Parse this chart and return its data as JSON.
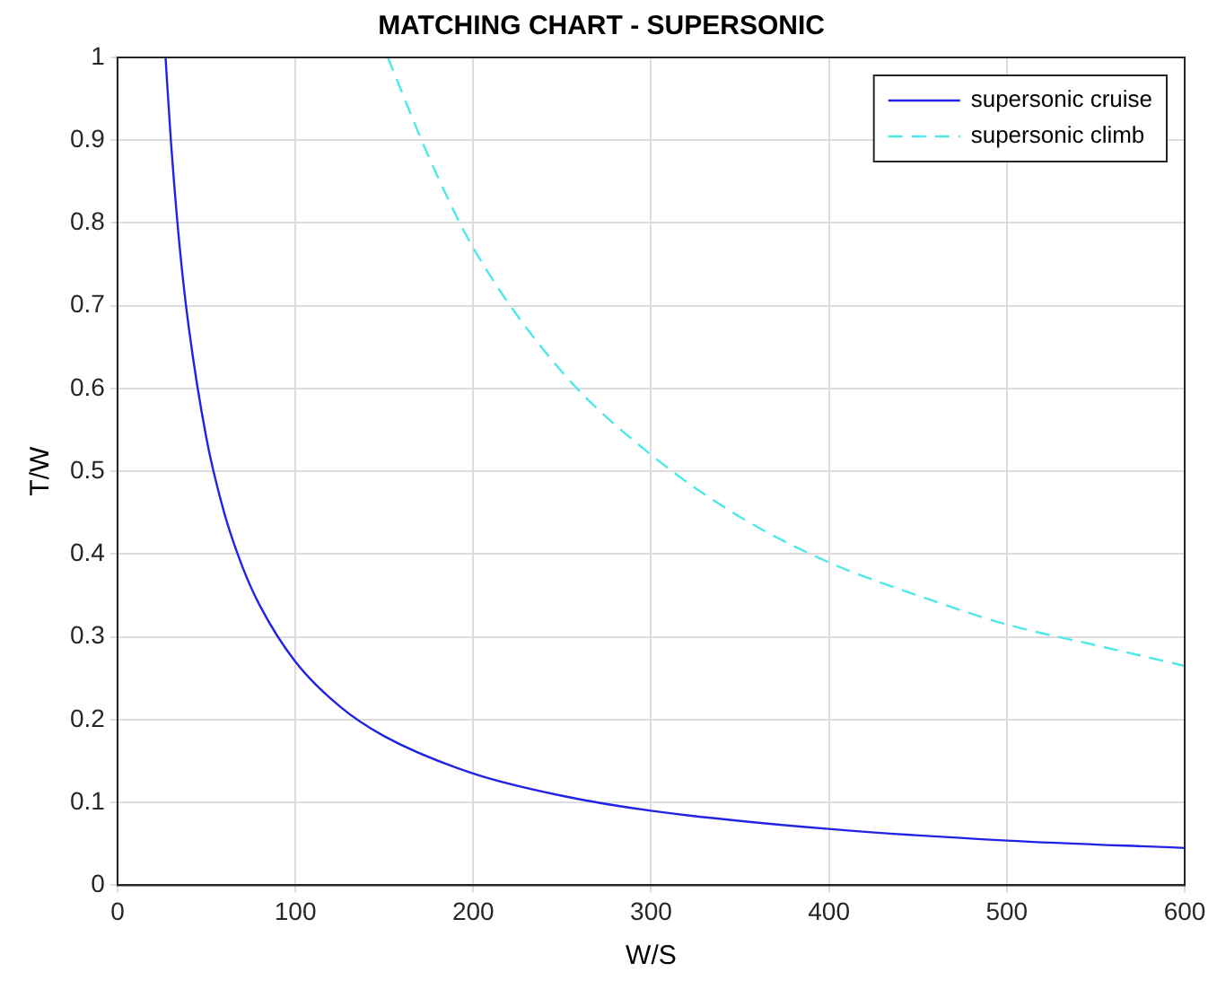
{
  "chart_data": {
    "type": "line",
    "title": "MATCHING CHART - SUPERSONIC",
    "xlabel": "W/S",
    "ylabel": "T/W",
    "series": [
      {
        "name": "supersonic cruise",
        "color": "#2222e6",
        "line_style": "solid",
        "x": [
          27,
          30,
          35,
          40,
          50,
          60,
          70,
          80,
          100,
          125,
          150,
          200,
          250,
          300,
          400,
          500,
          600
        ],
        "values": [
          1.0,
          0.9,
          0.77,
          0.675,
          0.54,
          0.45,
          0.386,
          0.338,
          0.27,
          0.216,
          0.18,
          0.135,
          0.108,
          0.09,
          0.068,
          0.054,
          0.045
        ]
      },
      {
        "name": "supersonic climb",
        "color": "#4de8e8",
        "line_style": "dashed",
        "x": [
          152,
          175,
          200,
          250,
          300,
          350,
          400,
          450,
          500,
          550,
          600
        ],
        "values": [
          1.0,
          0.88,
          0.77,
          0.62,
          0.52,
          0.445,
          0.39,
          0.35,
          0.315,
          0.29,
          0.265
        ]
      }
    ],
    "xlim": [
      0,
      600
    ],
    "ylim": [
      0,
      1
    ],
    "xticks": [
      0,
      100,
      200,
      300,
      400,
      500,
      600
    ],
    "yticks": [
      0,
      0.1,
      0.2,
      0.3,
      0.4,
      0.5,
      0.6,
      0.7,
      0.8,
      0.9,
      1
    ],
    "grid": true,
    "legend": "top right",
    "marker": "none"
  }
}
